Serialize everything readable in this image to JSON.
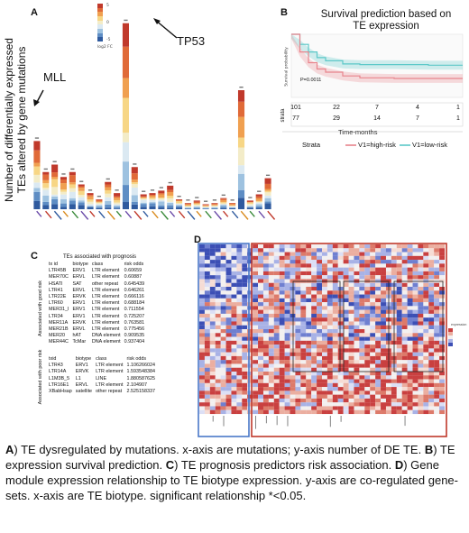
{
  "panel_a": {
    "letter": "A",
    "y_axis_title": [
      "Number of differentially expressed",
      "TEs altered by gene mutations"
    ],
    "legend_title": "log2 FC",
    "legend_ticks": [
      "5",
      "0",
      "-5"
    ],
    "callout_mll": "MLL",
    "callout_tp53": "TP53",
    "legend_colors": [
      "#c0392b",
      "#e06a38",
      "#f0a050",
      "#f7d685",
      "#f3ecc8",
      "#dbe9f2",
      "#9ec2e0",
      "#5e8dc4",
      "#2f5a9e"
    ]
  },
  "chart_data": {
    "type": "bar",
    "stacked": true,
    "categories": [
      "",
      "",
      "",
      "",
      "",
      "",
      "",
      "",
      "",
      "",
      "",
      "",
      "",
      "",
      "",
      "",
      "",
      "",
      "",
      "",
      "",
      "",
      "",
      "",
      "",
      "",
      ""
    ],
    "totals": [
      55,
      30,
      36,
      26,
      30,
      20,
      13,
      8,
      22,
      13,
      150,
      34,
      12,
      13,
      15,
      19,
      8,
      5,
      7,
      4,
      5,
      9,
      5,
      96,
      7,
      12,
      25
    ],
    "ylim": [
      0,
      160
    ],
    "series_colors": [
      "#2f5a9e",
      "#5e8dc4",
      "#9ec2e0",
      "#dbe9f2",
      "#f3ecc8",
      "#f7d685",
      "#f0a050",
      "#e06a38",
      "#c0392b"
    ]
  },
  "panel_b": {
    "letter": "B",
    "title": [
      "Survival prediction based on",
      "TE expression"
    ],
    "y_label": "Survival probability",
    "x_label": "Time-months",
    "p_value": "P=0.0011",
    "strata_label": "Strata",
    "legend_high": "V1=high-risk",
    "legend_low": "V1=low-risk",
    "color_high": "#e8848c",
    "color_low": "#5cc8c8",
    "risk_table_label": "strata",
    "risk_high": [
      "101",
      "22",
      "7",
      "4",
      "1"
    ],
    "risk_low": [
      "77",
      "29",
      "14",
      "7",
      "1"
    ],
    "survival_high": [
      [
        0,
        1.0
      ],
      [
        5,
        0.72
      ],
      [
        10,
        0.55
      ],
      [
        15,
        0.45
      ],
      [
        20,
        0.4
      ],
      [
        30,
        0.34
      ],
      [
        40,
        0.31
      ],
      [
        60,
        0.3
      ],
      [
        80,
        0.3
      ],
      [
        100,
        0.3
      ]
    ],
    "survival_low": [
      [
        0,
        1.0
      ],
      [
        5,
        0.84
      ],
      [
        10,
        0.72
      ],
      [
        15,
        0.63
      ],
      [
        20,
        0.58
      ],
      [
        30,
        0.53
      ],
      [
        40,
        0.52
      ],
      [
        60,
        0.52
      ],
      [
        80,
        0.51
      ],
      [
        100,
        0.51
      ]
    ]
  },
  "panel_c": {
    "letter": "C",
    "title": "TEs associated with prognosis",
    "header": [
      "tx id",
      "biotype",
      "class",
      "risk odds"
    ],
    "good_label": "Associated with good risk",
    "poor_label": "Associated with poor risk",
    "good_rows": [
      [
        "LTR45B",
        "ERV1",
        "LTR element",
        "0.60659"
      ],
      [
        "MER70C",
        "ERVL",
        "LTR element",
        "0.60887"
      ],
      [
        "HSATI",
        "SAT",
        "other repeat",
        "0.645439"
      ],
      [
        "LTR41",
        "ERVL",
        "LTR element",
        "0.646261"
      ],
      [
        "LTR22E",
        "ERVK",
        "LTR element",
        "0.666116"
      ],
      [
        "LTR60",
        "ERV1",
        "LTR element",
        "0.688184"
      ],
      [
        "MER31_I",
        "ERV1",
        "LTR element",
        "0.711554"
      ],
      [
        "LTR34",
        "ERV1",
        "LTR element",
        "0.725207"
      ],
      [
        "MER11A",
        "ERVK",
        "LTR element",
        "0.763581"
      ],
      [
        "MER21B",
        "ERVL",
        "LTR element",
        "0.775456"
      ],
      [
        "MER20",
        "hAT",
        "DNA element",
        "0.909535"
      ],
      [
        "MER44C",
        "TcMar",
        "DNA element",
        "0.937404"
      ]
    ],
    "poor_header": [
      "txid",
      "biotype",
      "class",
      "risk odds"
    ],
    "poor_rows": [
      [
        "LTR43",
        "ERV1",
        "LTR element",
        "1.106266024"
      ],
      [
        "LTR14A",
        "ERVK",
        "LTR element",
        "1.593548384"
      ],
      [
        "L1M3B_5",
        "L1",
        "LINE",
        "1.880587625"
      ],
      [
        "LTR16E1",
        "ERVL",
        "LTR element",
        "2.104907"
      ],
      [
        "XBabHsap",
        "satellite",
        "other repeat",
        "2.525158337"
      ]
    ]
  },
  "panel_d": {
    "letter": "D",
    "legend_label": "expression"
  },
  "caption": [
    {
      "bold": "A",
      "text": ") TE dysregulated by mutations.  x-axis are mutations; y-axis number of DE TE. "
    },
    {
      "bold": "B",
      "text": ") TE expression survival prediction. "
    },
    {
      "bold": "C",
      "text": ") TE prognosis predictors risk association. "
    },
    {
      "bold": "D",
      "text": ") Gene module expression relationship to TE biotype expression.  y-axis are co-regulated gene-sets.  x-axis are TE biotype.  significant relationship *<0.05."
    }
  ]
}
